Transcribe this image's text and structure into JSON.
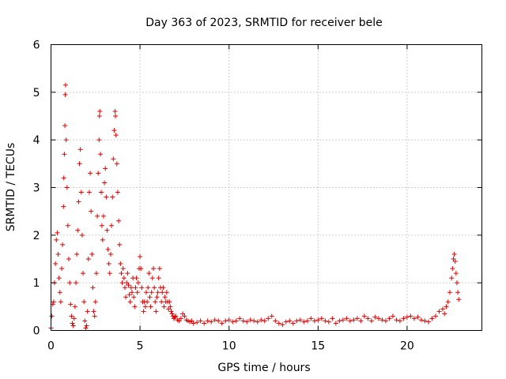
{
  "chart_data": {
    "type": "scatter",
    "title": "Day 363 of 2023, SRMTID for receiver bele",
    "xlabel": "GPS time / hours",
    "ylabel": "SRMTID / TECUs",
    "xlim": [
      0,
      24.2
    ],
    "ylim": [
      0,
      6
    ],
    "xticks": [
      0,
      5,
      10,
      15,
      20
    ],
    "yticks": [
      0,
      1,
      2,
      3,
      4,
      5,
      6
    ],
    "grid": true,
    "marker": "plus",
    "color": "#e00000",
    "series": [
      {
        "name": "SRMTID",
        "points": [
          [
            0.0,
            0.05
          ],
          [
            0.05,
            0.3
          ],
          [
            0.1,
            0.55
          ],
          [
            0.15,
            0.6
          ],
          [
            0.2,
            1.0
          ],
          [
            0.25,
            1.4
          ],
          [
            0.3,
            1.9
          ],
          [
            0.35,
            2.05
          ],
          [
            0.4,
            1.6
          ],
          [
            0.45,
            1.1
          ],
          [
            0.5,
            0.8
          ],
          [
            0.55,
            0.6
          ],
          [
            0.6,
            1.3
          ],
          [
            0.65,
            1.8
          ],
          [
            0.7,
            2.6
          ],
          [
            0.72,
            3.2
          ],
          [
            0.75,
            3.7
          ],
          [
            0.78,
            4.3
          ],
          [
            0.8,
            4.95
          ],
          [
            0.82,
            5.15
          ],
          [
            0.85,
            4.0
          ],
          [
            0.9,
            3.0
          ],
          [
            0.95,
            2.2
          ],
          [
            1.0,
            1.5
          ],
          [
            1.05,
            1.0
          ],
          [
            1.1,
            0.55
          ],
          [
            1.15,
            0.3
          ],
          [
            1.2,
            0.15
          ],
          [
            1.25,
            0.1
          ],
          [
            1.3,
            0.25
          ],
          [
            1.35,
            0.5
          ],
          [
            1.4,
            1.0
          ],
          [
            1.45,
            1.6
          ],
          [
            1.5,
            2.1
          ],
          [
            1.55,
            2.7
          ],
          [
            1.6,
            3.5
          ],
          [
            1.65,
            3.8
          ],
          [
            1.7,
            2.9
          ],
          [
            1.75,
            2.0
          ],
          [
            1.8,
            1.2
          ],
          [
            1.85,
            0.6
          ],
          [
            1.9,
            0.2
          ],
          [
            1.95,
            0.05
          ],
          [
            2.0,
            0.1
          ],
          [
            2.05,
            0.4
          ],
          [
            2.1,
            1.5
          ],
          [
            2.15,
            2.9
          ],
          [
            2.2,
            3.3
          ],
          [
            2.25,
            2.5
          ],
          [
            2.3,
            1.6
          ],
          [
            2.35,
            0.9
          ],
          [
            2.4,
            0.4
          ],
          [
            2.45,
            0.3
          ],
          [
            2.5,
            0.6
          ],
          [
            2.55,
            1.2
          ],
          [
            2.6,
            2.4
          ],
          [
            2.65,
            3.3
          ],
          [
            2.7,
            4.0
          ],
          [
            2.72,
            4.5
          ],
          [
            2.74,
            4.6
          ],
          [
            2.78,
            3.7
          ],
          [
            2.82,
            2.9
          ],
          [
            2.86,
            2.2
          ],
          [
            2.9,
            1.9
          ],
          [
            2.95,
            2.4
          ],
          [
            3.0,
            3.1
          ],
          [
            3.05,
            3.4
          ],
          [
            3.1,
            2.8
          ],
          [
            3.15,
            2.1
          ],
          [
            3.2,
            1.7
          ],
          [
            3.25,
            1.4
          ],
          [
            3.3,
            1.2
          ],
          [
            3.35,
            1.6
          ],
          [
            3.4,
            2.2
          ],
          [
            3.45,
            2.8
          ],
          [
            3.5,
            3.6
          ],
          [
            3.55,
            4.2
          ],
          [
            3.6,
            4.6
          ],
          [
            3.62,
            4.5
          ],
          [
            3.65,
            4.1
          ],
          [
            3.7,
            3.5
          ],
          [
            3.75,
            2.9
          ],
          [
            3.8,
            2.3
          ],
          [
            3.85,
            1.8
          ],
          [
            3.9,
            1.4
          ],
          [
            3.95,
            1.2
          ],
          [
            4.0,
            1.0
          ],
          [
            4.05,
            1.3
          ],
          [
            4.1,
            1.1
          ],
          [
            4.15,
            0.9
          ],
          [
            4.2,
            0.7
          ],
          [
            4.25,
            1.0
          ],
          [
            4.3,
            1.2
          ],
          [
            4.35,
            0.95
          ],
          [
            4.4,
            0.75
          ],
          [
            4.45,
            0.6
          ],
          [
            4.5,
            0.9
          ],
          [
            4.55,
            0.8
          ],
          [
            4.6,
            1.1
          ],
          [
            4.65,
            0.7
          ],
          [
            4.7,
            0.5
          ],
          [
            4.75,
            0.9
          ],
          [
            4.8,
            1.1
          ],
          [
            4.85,
            0.8
          ],
          [
            4.9,
            1.0
          ],
          [
            4.95,
            1.3
          ],
          [
            5.0,
            1.55
          ],
          [
            5.05,
            1.3
          ],
          [
            5.1,
            0.9
          ],
          [
            5.15,
            0.6
          ],
          [
            5.2,
            0.4
          ],
          [
            5.25,
            0.6
          ],
          [
            5.3,
            0.5
          ],
          [
            5.35,
            0.8
          ],
          [
            5.4,
            0.6
          ],
          [
            5.45,
            0.9
          ],
          [
            5.5,
            1.2
          ],
          [
            5.55,
            0.7
          ],
          [
            5.6,
            0.5
          ],
          [
            5.65,
            0.8
          ],
          [
            5.7,
            1.1
          ],
          [
            5.75,
            1.3
          ],
          [
            5.8,
            0.9
          ],
          [
            5.85,
            0.6
          ],
          [
            5.9,
            0.4
          ],
          [
            5.95,
            0.7
          ],
          [
            6.0,
            0.8
          ],
          [
            6.05,
            1.1
          ],
          [
            6.1,
            1.3
          ],
          [
            6.15,
            0.9
          ],
          [
            6.2,
            0.6
          ],
          [
            6.25,
            0.8
          ],
          [
            6.3,
            0.9
          ],
          [
            6.35,
            0.5
          ],
          [
            6.4,
            0.7
          ],
          [
            6.45,
            0.6
          ],
          [
            6.5,
            0.8
          ],
          [
            6.55,
            0.6
          ],
          [
            6.6,
            0.45
          ],
          [
            6.65,
            0.6
          ],
          [
            6.7,
            0.5
          ],
          [
            6.75,
            0.4
          ],
          [
            6.8,
            0.35
          ],
          [
            6.85,
            0.3
          ],
          [
            6.9,
            0.25
          ],
          [
            6.95,
            0.28
          ],
          [
            7.0,
            0.3
          ],
          [
            7.1,
            0.22
          ],
          [
            7.2,
            0.2
          ],
          [
            7.3,
            0.25
          ],
          [
            7.4,
            0.35
          ],
          [
            7.5,
            0.3
          ],
          [
            7.6,
            0.22
          ],
          [
            7.7,
            0.2
          ],
          [
            7.8,
            0.18
          ],
          [
            7.9,
            0.2
          ],
          [
            8.0,
            0.15
          ],
          [
            8.2,
            0.17
          ],
          [
            8.4,
            0.2
          ],
          [
            8.6,
            0.15
          ],
          [
            8.8,
            0.2
          ],
          [
            9.0,
            0.18
          ],
          [
            9.2,
            0.22
          ],
          [
            9.4,
            0.2
          ],
          [
            9.6,
            0.15
          ],
          [
            9.8,
            0.2
          ],
          [
            10.0,
            0.22
          ],
          [
            10.2,
            0.18
          ],
          [
            10.4,
            0.2
          ],
          [
            10.6,
            0.25
          ],
          [
            10.8,
            0.2
          ],
          [
            11.0,
            0.18
          ],
          [
            11.2,
            0.22
          ],
          [
            11.4,
            0.2
          ],
          [
            11.6,
            0.18
          ],
          [
            11.8,
            0.22
          ],
          [
            12.0,
            0.2
          ],
          [
            12.2,
            0.25
          ],
          [
            12.4,
            0.3
          ],
          [
            12.6,
            0.2
          ],
          [
            12.8,
            0.15
          ],
          [
            13.0,
            0.12
          ],
          [
            13.2,
            0.18
          ],
          [
            13.4,
            0.2
          ],
          [
            13.6,
            0.15
          ],
          [
            13.8,
            0.2
          ],
          [
            14.0,
            0.22
          ],
          [
            14.2,
            0.18
          ],
          [
            14.4,
            0.2
          ],
          [
            14.6,
            0.25
          ],
          [
            14.8,
            0.2
          ],
          [
            15.0,
            0.22
          ],
          [
            15.2,
            0.25
          ],
          [
            15.4,
            0.2
          ],
          [
            15.6,
            0.18
          ],
          [
            15.8,
            0.25
          ],
          [
            16.0,
            0.15
          ],
          [
            16.2,
            0.2
          ],
          [
            16.4,
            0.22
          ],
          [
            16.6,
            0.25
          ],
          [
            16.8,
            0.2
          ],
          [
            17.0,
            0.22
          ],
          [
            17.2,
            0.25
          ],
          [
            17.4,
            0.2
          ],
          [
            17.6,
            0.3
          ],
          [
            17.8,
            0.25
          ],
          [
            18.0,
            0.2
          ],
          [
            18.2,
            0.28
          ],
          [
            18.4,
            0.25
          ],
          [
            18.6,
            0.22
          ],
          [
            18.8,
            0.2
          ],
          [
            19.0,
            0.25
          ],
          [
            19.2,
            0.3
          ],
          [
            19.4,
            0.22
          ],
          [
            19.6,
            0.2
          ],
          [
            19.8,
            0.25
          ],
          [
            20.0,
            0.28
          ],
          [
            20.2,
            0.3
          ],
          [
            20.4,
            0.25
          ],
          [
            20.6,
            0.28
          ],
          [
            20.8,
            0.22
          ],
          [
            21.0,
            0.2
          ],
          [
            21.2,
            0.18
          ],
          [
            21.4,
            0.25
          ],
          [
            21.6,
            0.3
          ],
          [
            21.8,
            0.4
          ],
          [
            22.0,
            0.45
          ],
          [
            22.1,
            0.35
          ],
          [
            22.2,
            0.5
          ],
          [
            22.3,
            0.6
          ],
          [
            22.4,
            0.8
          ],
          [
            22.5,
            1.1
          ],
          [
            22.55,
            1.3
          ],
          [
            22.6,
            1.5
          ],
          [
            22.65,
            1.6
          ],
          [
            22.7,
            1.45
          ],
          [
            22.75,
            1.2
          ],
          [
            22.8,
            1.0
          ],
          [
            22.85,
            0.8
          ],
          [
            22.9,
            0.65
          ]
        ]
      }
    ]
  }
}
